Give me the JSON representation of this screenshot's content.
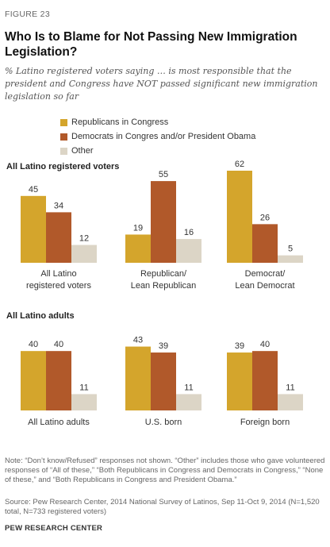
{
  "figure_label": "FIGURE 23",
  "title": "Who Is to Blame for Not Passing New Immigration Legislation?",
  "subtitle": "% Latino registered voters saying … is most responsible that the president and Congress have NOT passed significant new immigration legislation so far",
  "colors": {
    "republicans": "#D4A52C",
    "democrats": "#B1592A",
    "other": "#DCD5C6"
  },
  "chart_data": [
    {
      "type": "bar",
      "title": "All Latino registered voters",
      "categories": [
        "All Latino registered voters",
        "Republican/ Lean Republican",
        "Democrat/ Lean Democrat"
      ],
      "category_lines": [
        [
          "All Latino",
          "registered voters"
        ],
        [
          "Republican/",
          "Lean Republican"
        ],
        [
          "Democrat/",
          "Lean Democrat"
        ]
      ],
      "series": [
        {
          "name": "Republicans in Congress",
          "values": [
            45,
            19,
            62
          ]
        },
        {
          "name": "Democrats in Congres and/or President Obama",
          "values": [
            34,
            55,
            26
          ]
        },
        {
          "name": "Other",
          "values": [
            12,
            16,
            5
          ]
        }
      ],
      "ylim": [
        0,
        62
      ],
      "grid": false,
      "legend": "top-left"
    },
    {
      "type": "bar",
      "title": "All Latino adults",
      "categories": [
        "All Latino adults",
        "U.S. born",
        "Foreign born"
      ],
      "category_lines": [
        [
          "All Latino adults"
        ],
        [
          "U.S. born"
        ],
        [
          "Foreign born"
        ]
      ],
      "series": [
        {
          "name": "Republicans in Congress",
          "values": [
            40,
            43,
            39
          ]
        },
        {
          "name": "Democrats in Congres and/or President Obama",
          "values": [
            40,
            39,
            40
          ]
        },
        {
          "name": "Other",
          "values": [
            11,
            11,
            11
          ]
        }
      ],
      "ylim": [
        0,
        62
      ],
      "grid": false
    }
  ],
  "note": "Note: “Don’t know/Refused” responses not shown. “Other” includes those who gave volunteered responses of “All of these,” “Both Republicans in Congress and Democrats in Congress,” “None of these,” and “Both Republicans in Congress and President Obama.”",
  "source": "Source: Pew Research Center, 2014 National Survey of Latinos, Sep 11-Oct 9, 2014 (N=1,520 total, N=733 registered voters)",
  "brand": "PEW RESEARCH CENTER"
}
